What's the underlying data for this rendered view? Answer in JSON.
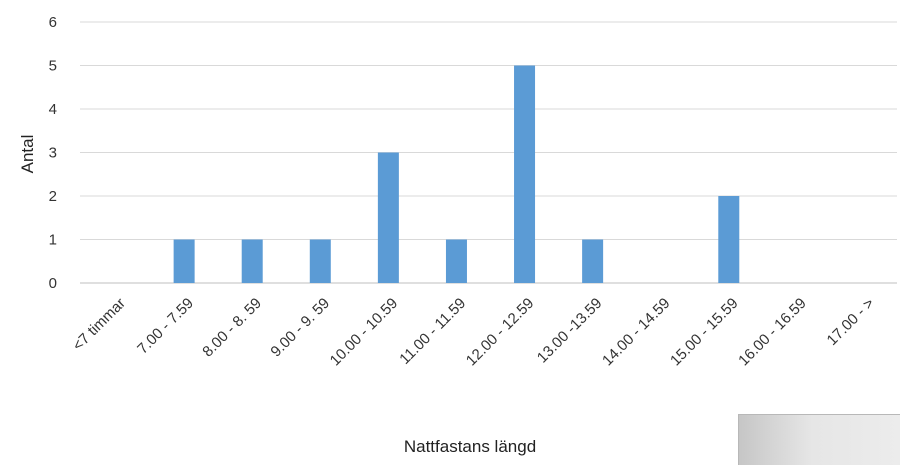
{
  "chart_data": {
    "type": "bar",
    "title": "",
    "xlabel": "Nattfastans längd",
    "ylabel": "Antal",
    "categories": [
      "<7 timmar",
      "7.00 - 7.59",
      "8.00 - 8. 59",
      "9.00 - 9. 59",
      "10.00 - 10.59",
      "11.00 - 11.59",
      "12.00 - 12.59",
      "13.00 -13.59",
      "14.00 - 14.59",
      "15.00 - 15.59",
      "16.00 - 16.59",
      "17.00 - >"
    ],
    "values": [
      0,
      1,
      1,
      1,
      3,
      1,
      5,
      1,
      0,
      2,
      0,
      0
    ],
    "ylim": [
      0,
      6
    ],
    "yticks": [
      0,
      1,
      2,
      3,
      4,
      5,
      6
    ],
    "grid": true,
    "bar_color": "#5b9bd5"
  }
}
